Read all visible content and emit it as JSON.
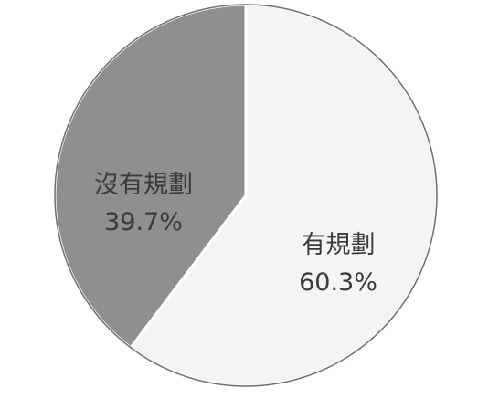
{
  "chart_data": {
    "type": "pie",
    "slices": [
      {
        "label": "有規劃",
        "value": 60.3,
        "value_label": "60.3%",
        "color": "#f4f4f4"
      },
      {
        "label": "沒有規劃",
        "value": 39.7,
        "value_label": "39.7%",
        "color": "#8f8f8f"
      }
    ],
    "start_angle_deg": 0,
    "direction": "clockwise",
    "legend": "none",
    "outline_color": "#6e6e6e",
    "slice_border_color": "#ffffff"
  }
}
